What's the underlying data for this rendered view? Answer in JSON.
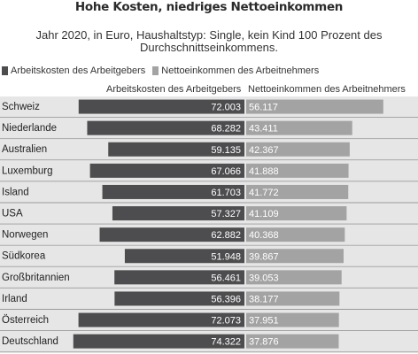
{
  "chart_data": {
    "type": "bar",
    "title": "Hohe Kosten, niedriges Nettoeinkommen",
    "subtitle": "Jahr 2020, in Euro, Haushaltstyp: Single, kein Kind 100 Prozent des Durchschnittseinkommens.",
    "legend": [
      {
        "name": "Arbeitskosten des Arbeitgebers",
        "color": "#4d4d4f"
      },
      {
        "name": "Nettoeinkommen des Arbeitnehmers",
        "color": "#a3a3a3"
      }
    ],
    "column_headers": [
      "Arbeitskosten des Arbeitgebers",
      "Nettoeinkommen des Arbeitnehmers"
    ],
    "categories": [
      "Schweiz",
      "Niederlande",
      "Australien",
      "Luxemburg",
      "Island",
      "USA",
      "Norwegen",
      "Südkorea",
      "Großbritannien",
      "Irland",
      "Österreich",
      "Deutschland"
    ],
    "series": [
      {
        "name": "Arbeitskosten des Arbeitgebers",
        "values": [
          72003,
          68282,
          59135,
          67066,
          61703,
          57327,
          62882,
          51948,
          56461,
          56396,
          72073,
          74322
        ],
        "labels": [
          "72.003",
          "68.282",
          "59.135",
          "67.066",
          "61.703",
          "57.327",
          "62.882",
          "51.948",
          "56.461",
          "56.396",
          "72.073",
          "74.322"
        ]
      },
      {
        "name": "Nettoeinkommen des Arbeitnehmers",
        "values": [
          56117,
          43411,
          42367,
          41888,
          41772,
          41109,
          40368,
          39867,
          39053,
          38177,
          37951,
          37876
        ],
        "labels": [
          "56.117",
          "43.411",
          "42.367",
          "41.888",
          "41.772",
          "41.109",
          "40.368",
          "39.867",
          "39.053",
          "38.177",
          "37.951",
          "37.876"
        ]
      }
    ],
    "colors": {
      "cost": "#4d4d4f",
      "net": "#a3a3a3",
      "row_background": "#e6e6e6",
      "separator": "#9a9a9a"
    }
  }
}
